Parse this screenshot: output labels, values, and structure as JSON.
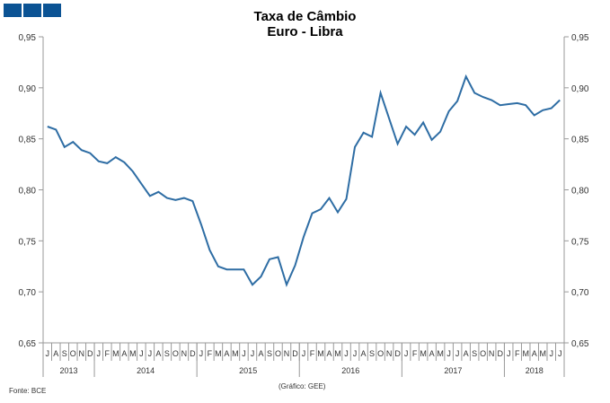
{
  "chart_data": {
    "type": "line",
    "title": "Taxa de Câmbio",
    "subtitle": "Euro - Libra",
    "ylim": [
      0.65,
      0.95
    ],
    "yticks": [
      "0,95",
      "0,90",
      "0,85",
      "0,80",
      "0,75",
      "0,70",
      "0,65"
    ],
    "ytick_values": [
      0.95,
      0.9,
      0.85,
      0.8,
      0.75,
      0.7,
      0.65
    ],
    "grid": false,
    "line_color": "#2e6da4",
    "month_labels": [
      "J",
      "A",
      "S",
      "O",
      "N",
      "D",
      "J",
      "F",
      "M",
      "A",
      "M",
      "J",
      "J",
      "A",
      "S",
      "O",
      "N",
      "D",
      "J",
      "F",
      "M",
      "A",
      "M",
      "J",
      "J",
      "A",
      "S",
      "O",
      "N",
      "D",
      "J",
      "F",
      "M",
      "A",
      "M",
      "J",
      "J",
      "A",
      "S",
      "O",
      "N",
      "D",
      "J",
      "F",
      "M",
      "A",
      "M",
      "J",
      "J",
      "A",
      "S",
      "O",
      "N",
      "D",
      "J",
      "F",
      "M",
      "A",
      "M",
      "J",
      "J"
    ],
    "years": [
      {
        "label": "2013",
        "months": 6
      },
      {
        "label": "2014",
        "months": 12
      },
      {
        "label": "2015",
        "months": 12
      },
      {
        "label": "2016",
        "months": 12
      },
      {
        "label": "2017",
        "months": 12
      },
      {
        "label": "2018",
        "months": 7
      }
    ],
    "values": [
      0.862,
      0.859,
      0.842,
      0.847,
      0.839,
      0.836,
      0.828,
      0.826,
      0.832,
      0.827,
      0.818,
      0.806,
      0.794,
      0.798,
      0.792,
      0.79,
      0.792,
      0.789,
      0.766,
      0.741,
      0.725,
      0.722,
      0.722,
      0.722,
      0.707,
      0.715,
      0.732,
      0.734,
      0.707,
      0.726,
      0.754,
      0.777,
      0.781,
      0.792,
      0.778,
      0.791,
      0.842,
      0.856,
      0.852,
      0.895,
      0.87,
      0.845,
      0.862,
      0.854,
      0.866,
      0.849,
      0.857,
      0.877,
      0.887,
      0.911,
      0.895,
      0.891,
      0.888,
      0.883,
      0.884,
      0.885,
      0.883,
      0.873,
      0.878,
      0.88,
      0.888
    ]
  },
  "footer": {
    "source": "Fonte: BCE",
    "credit": "(Gráfico:  GEE)"
  }
}
